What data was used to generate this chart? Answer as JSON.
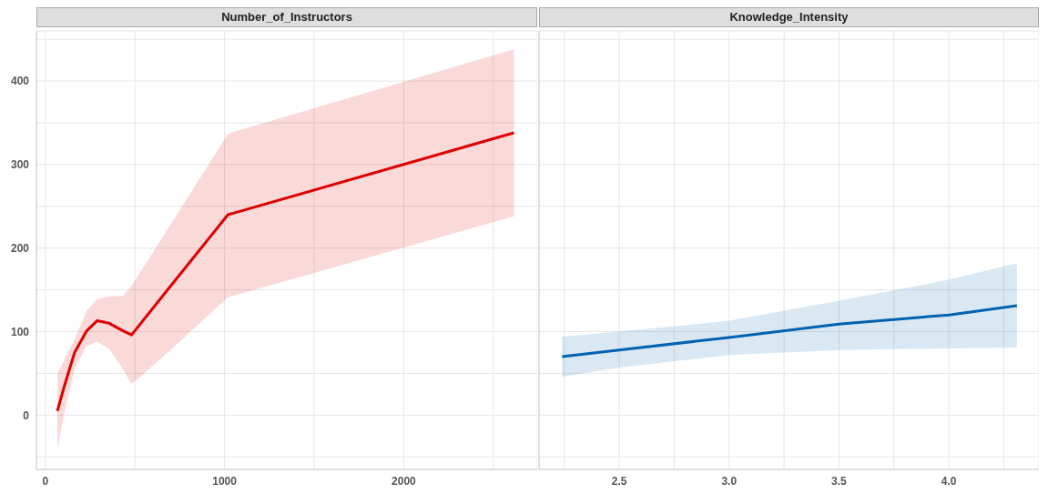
{
  "chart_data": [
    {
      "type": "line",
      "title": "Number_of_Instructors",
      "x": [
        67,
        106,
        163,
        231,
        288,
        356,
        433,
        481,
        663,
        1019,
        2615
      ],
      "series": [
        {
          "color": "#dd0000",
          "values": [
            5,
            35,
            75,
            101,
            113,
            110,
            101,
            96,
            145,
            240,
            338
          ],
          "lower": [
            -41,
            3,
            55,
            83,
            88,
            79,
            55,
            37,
            71,
            141,
            238
          ],
          "upper": [
            50,
            66,
            91,
            125,
            139,
            142,
            143,
            155,
            216,
            337,
            438
          ]
        }
      ],
      "xlim": [
        -50,
        2745
      ],
      "xticks": [
        0,
        {
          "value": 500,
          "label": null
        },
        1000,
        {
          "value": 1500,
          "label": null
        },
        2000,
        {
          "value": 2500,
          "label": null
        }
      ],
      "ylim": [
        -65,
        460
      ],
      "yticks": [
        {
          "value": -50,
          "label": null
        },
        0,
        {
          "value": 50,
          "label": null
        },
        100,
        {
          "value": 150,
          "label": null
        },
        200,
        {
          "value": 250,
          "label": null
        },
        300,
        {
          "value": 350,
          "label": null
        },
        400,
        {
          "value": 450,
          "label": null
        }
      ],
      "grid": true,
      "legend": false,
      "marker": "none",
      "line_style": "solid"
    },
    {
      "type": "line",
      "title": "Knowledge_Intensity",
      "x": [
        2.24,
        2.5,
        3.0,
        3.5,
        4.0,
        4.31
      ],
      "series": [
        {
          "color": "#0062b0",
          "values": [
            70,
            78,
            93,
            109,
            120,
            131
          ],
          "lower": [
            46,
            57,
            72,
            78,
            80,
            81
          ],
          "upper": [
            94,
            100,
            113,
            137,
            162,
            182
          ]
        }
      ],
      "xlim": [
        2.135,
        4.41
      ],
      "xticks": [
        {
          "value": 2.25,
          "label": null
        },
        2.5,
        {
          "value": 2.75,
          "label": null
        },
        {
          "value": 3,
          "label": "3.0"
        },
        {
          "value": 3.25,
          "label": null
        },
        3.5,
        {
          "value": 3.75,
          "label": null
        },
        {
          "value": 4,
          "label": "4.0"
        },
        {
          "value": 4.25,
          "label": null
        }
      ],
      "ylim": [
        -65,
        460
      ],
      "yticks": [
        {
          "value": -50,
          "label": null
        },
        0,
        {
          "value": 50,
          "label": null
        },
        100,
        {
          "value": 150,
          "label": null
        },
        200,
        {
          "value": 250,
          "label": null
        },
        300,
        {
          "value": 350,
          "label": null
        },
        400,
        {
          "value": 450,
          "label": null
        }
      ],
      "tick_labels": "x",
      "grid": true,
      "legend": false,
      "marker": "none",
      "line_style": "solid"
    }
  ]
}
